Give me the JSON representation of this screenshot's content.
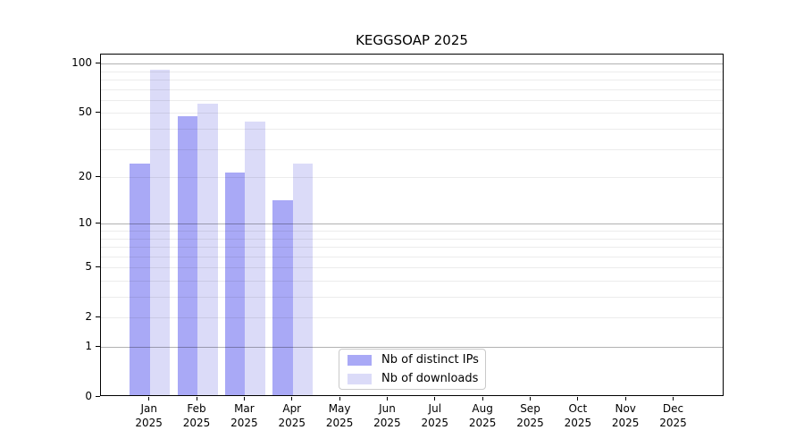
{
  "chart_data": {
    "type": "bar",
    "title": "KEGGSOAP 2025",
    "categories": [
      "Jan",
      "Feb",
      "Mar",
      "Apr",
      "May",
      "Jun",
      "Jul",
      "Aug",
      "Sep",
      "Oct",
      "Nov",
      "Dec"
    ],
    "x_sublabel": "2025",
    "series": [
      {
        "name": "Nb of distinct IPs",
        "color": "#a9a9f6",
        "values": [
          24,
          47,
          21,
          14,
          null,
          null,
          null,
          null,
          null,
          null,
          null,
          null
        ]
      },
      {
        "name": "Nb of downloads",
        "color": "#dbdbf8",
        "values": [
          91,
          56,
          44,
          24,
          null,
          null,
          null,
          null,
          null,
          null,
          null,
          null
        ]
      }
    ],
    "yscale": "log1p",
    "ylim": [
      0,
      114
    ],
    "y_tick_values": [
      100,
      50,
      20,
      10,
      5,
      2,
      1,
      0
    ],
    "y_tick_labels": [
      "100",
      "50",
      "20",
      "10",
      "5",
      "2",
      "1",
      "0"
    ],
    "y_major_gridlines": [
      1,
      10,
      100
    ],
    "y_minor_gridlines": [
      2,
      3,
      4,
      5,
      6,
      7,
      8,
      9,
      20,
      30,
      40,
      50,
      60,
      70,
      80,
      90
    ],
    "grid": "on",
    "legend_position": "lower center",
    "colors": {
      "axis": "#000000",
      "text": "#000000",
      "major_grid": "#b3b3b3",
      "minor_grid": "#ececec",
      "background": "#ffffff"
    }
  }
}
